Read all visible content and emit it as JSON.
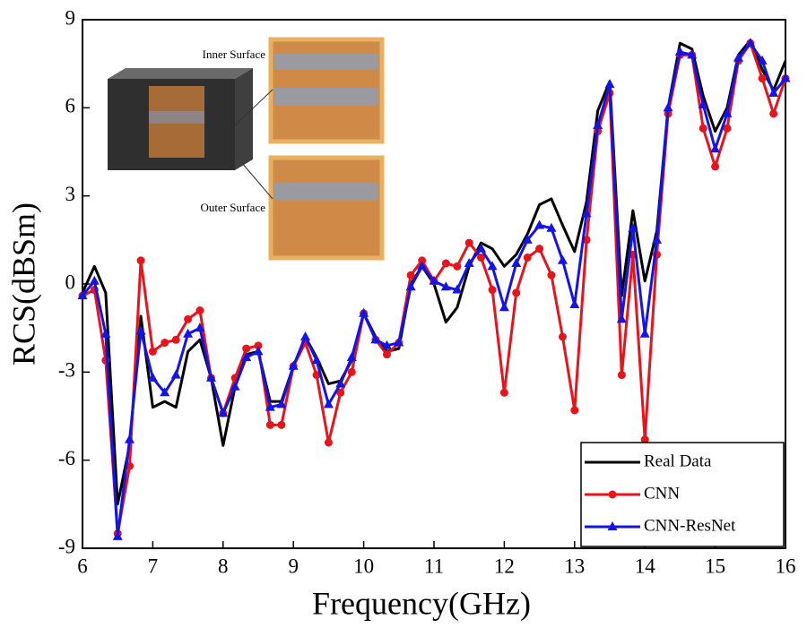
{
  "chart_data": {
    "type": "line",
    "xlabel": "Frequency(GHz)",
    "ylabel": "RCS(dBSm)",
    "annotations": [
      "Inner Surface",
      "Outer Surface"
    ],
    "x": [
      6,
      6.17,
      6.33,
      6.5,
      6.67,
      6.83,
      7,
      7.17,
      7.33,
      7.5,
      7.67,
      7.83,
      8,
      8.17,
      8.33,
      8.5,
      8.67,
      8.83,
      9,
      9.17,
      9.33,
      9.5,
      9.67,
      9.83,
      10,
      10.17,
      10.33,
      10.5,
      10.67,
      10.83,
      11,
      11.17,
      11.33,
      11.5,
      11.67,
      11.83,
      12,
      12.17,
      12.33,
      12.5,
      12.67,
      12.83,
      13,
      13.17,
      13.33,
      13.5,
      13.67,
      13.83,
      14,
      14.17,
      14.33,
      14.5,
      14.67,
      14.83,
      15,
      15.17,
      15.33,
      15.5,
      15.67,
      15.83,
      16
    ],
    "series": [
      {
        "name": "Real Data",
        "color": "#000000",
        "marker": null,
        "values": [
          -0.3,
          0.6,
          -0.3,
          -7.5,
          -5.5,
          -1.1,
          -4.2,
          -4.0,
          -4.2,
          -2.3,
          -1.9,
          -3.2,
          -5.5,
          -3.5,
          -2.4,
          -2.3,
          -4.0,
          -4.0,
          -2.8,
          -1.8,
          -2.5,
          -3.4,
          -3.3,
          -2.6,
          -1.0,
          -1.8,
          -2.3,
          -2.2,
          0,
          0.6,
          0,
          -1.3,
          -0.8,
          0.6,
          1.4,
          1.2,
          0.6,
          1.0,
          1.7,
          2.7,
          2.9,
          2.0,
          1.1,
          2.8,
          5.9,
          6.9,
          -0.4,
          2.5,
          0.1,
          1.8,
          6.0,
          8.2,
          8.0,
          6.4,
          5.2,
          6.0,
          7.8,
          8.3,
          7.3,
          6.6,
          7.6
        ]
      },
      {
        "name": "CNN",
        "color": "#e8141c",
        "marker": "circle",
        "values": [
          -0.4,
          -0.2,
          -2.6,
          -8.5,
          -6.2,
          0.8,
          -2.3,
          -2.0,
          -1.9,
          -1.2,
          -0.9,
          -3.2,
          -4.4,
          -3.2,
          -2.2,
          -2.1,
          -4.8,
          -4.8,
          -2.8,
          -2.0,
          -3.1,
          -5.4,
          -3.7,
          -3.0,
          -1.0,
          -1.9,
          -2.4,
          -2.0,
          0.3,
          0.8,
          0.1,
          0.7,
          0.6,
          1.4,
          0.9,
          -0.2,
          -3.7,
          -0.3,
          0.9,
          1.2,
          0.3,
          -1.8,
          -4.3,
          1.5,
          5.2,
          6.5,
          -3.1,
          1.0,
          -5.3,
          1.0,
          5.8,
          7.8,
          7.8,
          5.3,
          4.0,
          5.3,
          7.6,
          8.2,
          7.0,
          5.8,
          7.0
        ]
      },
      {
        "name": "CNN-ResNet",
        "color": "#1414e6",
        "marker": "triangle",
        "values": [
          -0.4,
          0.1,
          -1.7,
          -8.6,
          -5.3,
          -1.6,
          -3.2,
          -3.7,
          -3.1,
          -1.7,
          -1.5,
          -3.2,
          -4.4,
          -3.5,
          -2.5,
          -2.3,
          -4.2,
          -4.1,
          -2.8,
          -1.8,
          -2.6,
          -4.1,
          -3.4,
          -2.5,
          -1.0,
          -1.9,
          -2.1,
          -2.0,
          -0.1,
          0.6,
          0.1,
          -0.1,
          -0.2,
          0.7,
          1.2,
          0.6,
          -0.8,
          0.7,
          1.5,
          2.0,
          1.9,
          0.8,
          -0.7,
          2.4,
          5.4,
          6.8,
          -1.2,
          1.9,
          -1.7,
          1.5,
          6.0,
          7.9,
          7.8,
          6.1,
          4.6,
          5.8,
          7.7,
          8.2,
          7.6,
          6.5,
          7.0
        ]
      }
    ],
    "xlim": [
      6,
      16
    ],
    "xticks": [
      6,
      7,
      8,
      9,
      10,
      11,
      12,
      13,
      14,
      15,
      16
    ],
    "ylim": [
      -9,
      9
    ],
    "yticks": [
      -9,
      -6,
      -3,
      0,
      3,
      6,
      9
    ],
    "grid": false,
    "legend": "lower right"
  }
}
